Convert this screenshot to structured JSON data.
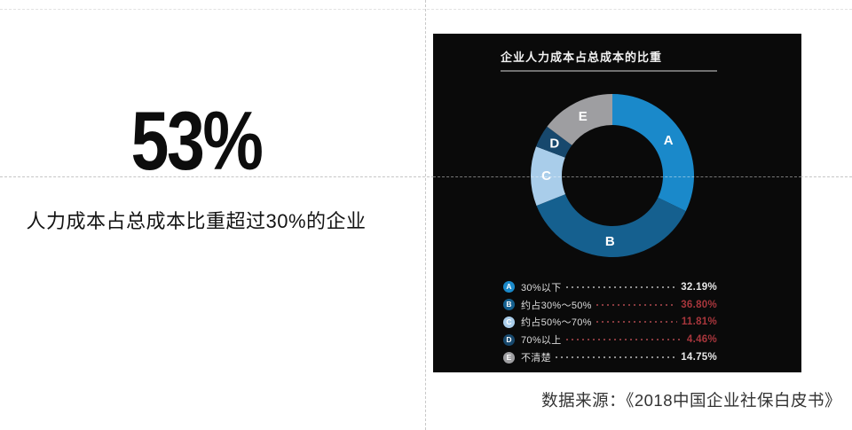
{
  "left": {
    "headline": "53%",
    "subtitle": "人力成本占总成本比重超过30%的企业"
  },
  "footer": {
    "source": "数据来源：《2018中国企业社保白皮书》"
  },
  "colors": {
    "panel_bg": "#0a0a0a",
    "accent_blue": "#1a89ca",
    "highlight_red": "#a8363c",
    "guide_gray": "#c6c6c6"
  },
  "chart_data": {
    "type": "pie",
    "subtype": "donut",
    "title": "企业人力成本占总成本的比重",
    "legend_position": "bottom",
    "start_angle_deg": 0,
    "direction": "clockwise",
    "series": [
      {
        "letter": "A",
        "label": "30%以下",
        "value": 32.19,
        "display": "32.19%",
        "color": "#1a89ca",
        "value_color": "#e8e8e8",
        "leader_color": "#8f8f8f"
      },
      {
        "letter": "B",
        "label": "约占30%～50%",
        "value": 36.8,
        "display": "36.80%",
        "color": "#15608f",
        "value_color": "#a8363c",
        "leader_color": "#873a3e"
      },
      {
        "letter": "C",
        "label": "约占50%～70%",
        "value": 11.81,
        "display": "11.81%",
        "color": "#a9cdea",
        "value_color": "#a8363c",
        "leader_color": "#873a3e"
      },
      {
        "letter": "D",
        "label": "70%以上",
        "value": 4.46,
        "display": "4.46%",
        "color": "#17486d",
        "value_color": "#a8363c",
        "leader_color": "#873a3e"
      },
      {
        "letter": "E",
        "label": "不清楚",
        "value": 14.75,
        "display": "14.75%",
        "color": "#9e9ea1",
        "value_color": "#e8e8e8",
        "leader_color": "#8f8f8f"
      }
    ]
  }
}
